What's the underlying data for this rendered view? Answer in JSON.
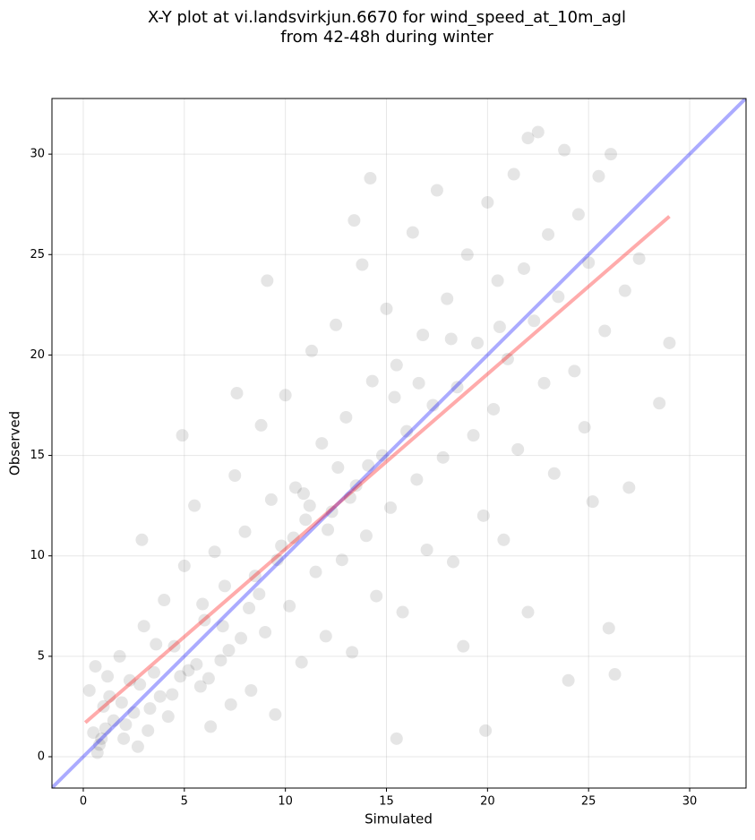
{
  "chart_data": {
    "type": "scatter",
    "title": "X-Y plot at vi.landsvirkjun.6670 for wind_speed_at_10m_agl",
    "subtitle": "from 42-48h during winter",
    "x_label": "Simulated",
    "y_label": "Observed",
    "xlim": [
      -1.55,
      32.79
    ],
    "ylim": [
      -1.56,
      32.77
    ],
    "xticks": [
      0,
      5,
      10,
      15,
      20,
      25,
      30
    ],
    "yticks": [
      0,
      5,
      10,
      15,
      20,
      25,
      30
    ],
    "grid": true,
    "color": "#000000",
    "alpha": 0.1,
    "x": [
      0.5,
      0.8,
      1.0,
      1.2,
      0.3,
      0.7,
      1.5,
      2.0,
      2.3,
      1.8,
      2.5,
      3.0,
      2.7,
      3.5,
      3.2,
      4.0,
      3.8,
      4.5,
      4.2,
      5.0,
      5.2,
      5.5,
      5.8,
      6.0,
      6.3,
      6.5,
      6.8,
      7.0,
      7.3,
      7.5,
      7.8,
      8.0,
      8.3,
      8.5,
      8.8,
      9.0,
      9.3,
      9.5,
      9.8,
      10.0,
      10.2,
      10.5,
      10.8,
      11.0,
      11.3,
      11.5,
      11.8,
      12.0,
      12.3,
      12.5,
      12.8,
      13.0,
      13.3,
      13.5,
      13.8,
      14.0,
      14.3,
      14.5,
      14.8,
      15.0,
      15.2,
      15.5,
      15.8,
      16.0,
      16.3,
      16.5,
      16.8,
      17.0,
      17.3,
      17.5,
      17.8,
      18.0,
      18.3,
      18.5,
      18.8,
      19.0,
      19.3,
      19.5,
      19.8,
      20.0,
      20.3,
      20.5,
      20.8,
      21.0,
      21.3,
      21.5,
      21.8,
      22.0,
      22.3,
      22.5,
      22.8,
      23.0,
      23.3,
      23.5,
      23.8,
      24.0,
      24.3,
      24.5,
      24.8,
      25.0,
      25.2,
      25.5,
      25.8,
      26.0,
      26.3,
      26.8,
      27.0,
      27.5,
      28.5,
      29.0,
      0.6,
      1.3,
      1.9,
      2.8,
      3.6,
      4.8,
      5.6,
      6.2,
      7.2,
      8.2,
      9.6,
      10.4,
      11.2,
      12.1,
      13.2,
      14.1,
      15.4,
      16.6,
      18.2,
      20.6,
      0.9,
      1.1,
      2.1,
      3.3,
      4.4,
      5.9,
      6.9,
      8.7,
      10.9,
      12.6,
      9.1,
      14.2,
      19.9,
      15.5,
      22.0,
      26.1,
      2.9,
      4.9,
      7.6,
      13.4
    ],
    "y": [
      1.2,
      0.6,
      2.5,
      4.0,
      3.3,
      0.2,
      1.8,
      0.9,
      3.8,
      5.0,
      2.2,
      6.5,
      0.5,
      4.2,
      1.3,
      7.8,
      3.0,
      5.5,
      2.0,
      9.5,
      4.3,
      12.5,
      3.5,
      6.8,
      1.5,
      10.2,
      4.8,
      8.5,
      2.6,
      14.0,
      5.9,
      11.2,
      3.3,
      9.0,
      16.5,
      6.2,
      12.8,
      2.1,
      10.5,
      18.0,
      7.5,
      13.4,
      4.7,
      11.8,
      20.2,
      9.2,
      15.6,
      6.0,
      12.2,
      21.5,
      9.8,
      16.9,
      5.2,
      13.5,
      24.5,
      11.0,
      18.7,
      8.0,
      15.0,
      22.3,
      12.4,
      19.5,
      7.2,
      16.2,
      26.1,
      13.8,
      21.0,
      10.3,
      17.5,
      28.2,
      14.9,
      22.8,
      9.7,
      18.4,
      5.5,
      25.0,
      16.0,
      20.6,
      12.0,
      27.6,
      17.3,
      23.7,
      10.8,
      19.8,
      29.0,
      15.3,
      24.3,
      7.2,
      21.7,
      31.1,
      18.6,
      26.0,
      14.1,
      22.9,
      30.2,
      3.8,
      19.2,
      27.0,
      16.4,
      24.6,
      12.7,
      28.9,
      21.2,
      6.4,
      4.1,
      23.2,
      13.4,
      24.8,
      17.6,
      20.6,
      4.5,
      3.0,
      2.7,
      3.6,
      5.6,
      4.0,
      4.6,
      3.9,
      5.3,
      7.4,
      9.8,
      10.9,
      12.5,
      11.3,
      12.9,
      14.5,
      17.9,
      18.6,
      20.8,
      21.4,
      0.9,
      1.4,
      1.6,
      2.4,
      3.1,
      7.6,
      6.5,
      8.1,
      13.1,
      14.4,
      23.7,
      28.8,
      1.3,
      0.9,
      30.8,
      30.0,
      10.8,
      16.0,
      18.1,
      26.7
    ],
    "lines": [
      {
        "x": [
          -1.55,
          32.79
        ],
        "y": [
          -1.55,
          32.79
        ],
        "color": "#0000ff",
        "alpha": 0.33
      },
      {
        "x": [
          0.1,
          29.0
        ],
        "y": [
          1.7,
          26.9
        ],
        "color": "#ff0000",
        "alpha": 0.33
      }
    ]
  }
}
